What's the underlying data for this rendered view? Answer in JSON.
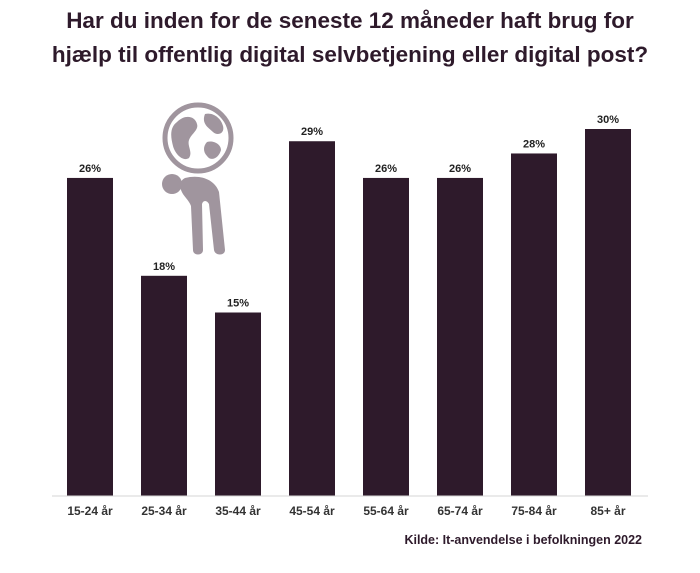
{
  "title_lines": [
    "Har du inden for de seneste 12 måneder haft brug for",
    "hjælp til offentlig digital selvbetjening eller digital post?"
  ],
  "source": "Kilde: It-anvendelse i befolkningen 2022",
  "icon": "person-with-globe-icon",
  "colors": {
    "bar": "#2e1a2b",
    "text": "#2e1a2b",
    "icon": "#a0959e",
    "axis": "#d5d5d5"
  },
  "chart_data": {
    "type": "bar",
    "title": "Har du inden for de seneste 12 måneder haft brug for hjælp til offentlig digital selvbetjening eller digital post?",
    "categories": [
      "15-24 år",
      "25-34 år",
      "35-44 år",
      "45-54 år",
      "55-64 år",
      "65-74 år",
      "75-84 år",
      "85+ år"
    ],
    "values": [
      26,
      18,
      15,
      29,
      26,
      26,
      28,
      30
    ],
    "value_labels": [
      "26%",
      "18%",
      "15%",
      "29%",
      "26%",
      "26%",
      "28%",
      "30%"
    ],
    "xlabel": "",
    "ylabel": "",
    "ylim": [
      0,
      30
    ],
    "grid": false,
    "legend": "none"
  }
}
